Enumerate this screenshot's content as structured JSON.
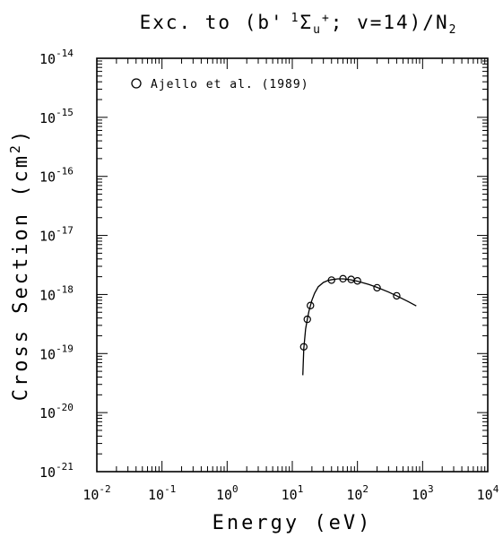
{
  "chart_data": {
    "type": "scatter",
    "title": {
      "prefix": "Exc. to (b'",
      "sup1": "1",
      "sigma": "Σ",
      "sub_u": "u",
      "sup_plus": "+",
      "middle": "; v=14)/N",
      "sub2": "2"
    },
    "xlabel": "Energy (eV)",
    "ylabel": {
      "base": "Cross Section (cm",
      "sup": "2",
      "close": ")"
    },
    "x_scale": "log",
    "y_scale": "log",
    "xlim": [
      0.01,
      10000
    ],
    "ylim": [
      1e-21,
      1e-14
    ],
    "x_ticks": [
      {
        "base": "10",
        "exp": "-2"
      },
      {
        "base": "10",
        "exp": "-1"
      },
      {
        "base": "10",
        "exp": "0"
      },
      {
        "base": "10",
        "exp": "1"
      },
      {
        "base": "10",
        "exp": "2"
      },
      {
        "base": "10",
        "exp": "3"
      },
      {
        "base": "10",
        "exp": "4"
      }
    ],
    "y_ticks": [
      {
        "base": "10",
        "exp": "-21"
      },
      {
        "base": "10",
        "exp": "-20"
      },
      {
        "base": "10",
        "exp": "-19"
      },
      {
        "base": "10",
        "exp": "-18"
      },
      {
        "base": "10",
        "exp": "-17"
      },
      {
        "base": "10",
        "exp": "-16"
      },
      {
        "base": "10",
        "exp": "-15"
      },
      {
        "base": "10",
        "exp": "-14"
      }
    ],
    "grid": false,
    "legend_position": "top-left",
    "series": [
      {
        "name": "Ajello et al. (1989)",
        "kind": "points",
        "marker": "open-circle",
        "x": [
          15,
          17,
          19,
          40,
          60,
          80,
          100,
          200,
          400
        ],
        "y": [
          1.3e-19,
          3.8e-19,
          6.5e-19,
          1.75e-18,
          1.85e-18,
          1.8e-18,
          1.7e-18,
          1.3e-18,
          9.5e-19
        ]
      },
      {
        "kind": "line",
        "x": [
          14.5,
          15,
          16,
          17,
          18,
          19,
          20,
          22,
          25,
          30,
          35,
          40,
          50,
          60,
          70,
          80,
          100,
          150,
          200,
          300,
          400,
          600,
          800
        ],
        "y": [
          4.3e-20,
          1.2e-19,
          2.6e-19,
          3.8e-19,
          5.2e-19,
          6.5e-19,
          8e-19,
          1.05e-18,
          1.35e-18,
          1.6e-18,
          1.72e-18,
          1.78e-18,
          1.84e-18,
          1.84e-18,
          1.81e-18,
          1.77e-18,
          1.68e-18,
          1.48e-18,
          1.32e-18,
          1.1e-18,
          9.5e-19,
          7.6e-19,
          6.4e-19
        ]
      }
    ]
  }
}
